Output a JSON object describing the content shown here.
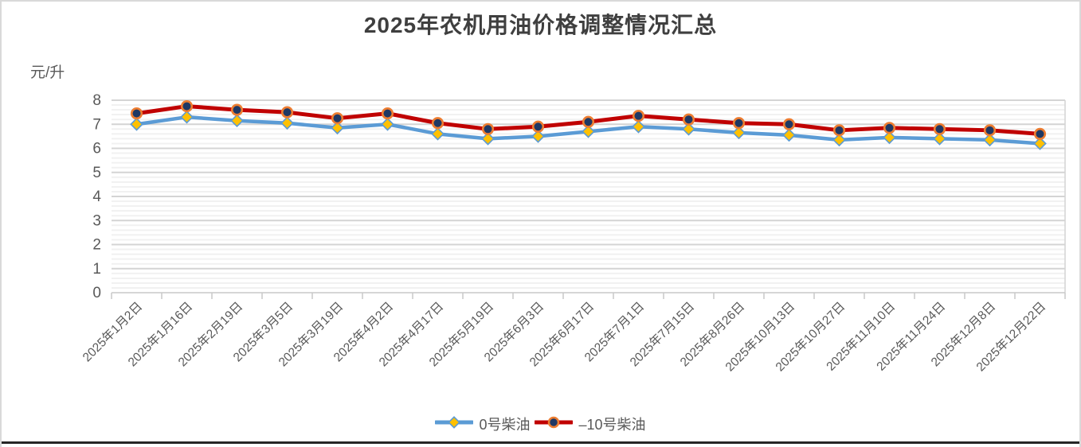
{
  "title": "2025年农机用油价格调整情况汇总",
  "y_axis_unit": "元/升",
  "chart_data": {
    "type": "line",
    "title": "2025年农机用油价格调整情况汇总",
    "xlabel": "",
    "ylabel": "元/升",
    "ylim": [
      0,
      8
    ],
    "y_tick_step": 1,
    "y_minor_step": 0.2,
    "grid": {
      "major": true,
      "minor": true
    },
    "legend_position": "bottom",
    "categories": [
      "2025年1月2日",
      "2025年1月16日",
      "2025年2月19日",
      "2025年3月5日",
      "2025年3月19日",
      "2025年4月2日",
      "2025年4月17日",
      "2025年5月19日",
      "2025年6月3日",
      "2025年6月17日",
      "2025年7月1日",
      "2025年7月15日",
      "2025年8月26日",
      "2025年10月13日",
      "2025年10月27日",
      "2025年11月10日",
      "2025年11月24日",
      "2025年12月8日",
      "2025年12月22日"
    ],
    "series": [
      {
        "name": "0号柴油",
        "marker": "diamond",
        "line_color": "#5B9BD5",
        "marker_fill": "#FFC000",
        "marker_stroke": "#5B9BD5",
        "values": [
          7.0,
          7.3,
          7.15,
          7.05,
          6.85,
          7.0,
          6.6,
          6.4,
          6.5,
          6.7,
          6.9,
          6.8,
          6.65,
          6.55,
          6.35,
          6.45,
          6.4,
          6.35,
          6.2
        ]
      },
      {
        "name": "–10号柴油",
        "marker": "circle",
        "line_color": "#C00000",
        "marker_fill": "#1F3864",
        "marker_stroke": "#ED7D31",
        "values": [
          7.45,
          7.75,
          7.6,
          7.5,
          7.25,
          7.45,
          7.05,
          6.8,
          6.9,
          7.1,
          7.35,
          7.2,
          7.05,
          7.0,
          6.75,
          6.85,
          6.8,
          6.75,
          6.6
        ]
      }
    ],
    "colors": {
      "grid_major": "#D4D4D4",
      "grid_minor": "#F1F1F1",
      "axis_line": "#C9C9C9",
      "axis_text": "#595959",
      "title_text": "#3F3F3F"
    }
  }
}
